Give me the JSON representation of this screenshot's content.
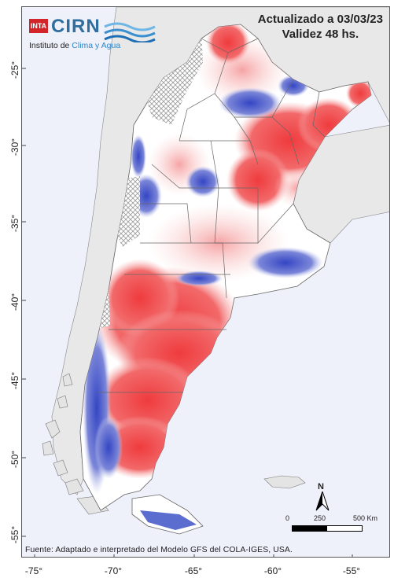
{
  "logo": {
    "inta_text": "INTA",
    "cirn_text": "CIRN",
    "institute_prefix": "Instituto de ",
    "institute_highlight": "Clima y Agua"
  },
  "header": {
    "updated": "Actualizado a 03/03/23",
    "validity": "Validez 48 hs."
  },
  "source_note": "Fuente: Adaptado e interpretado del Modelo GFS del COLA-IGES, USA.",
  "scale_bar": {
    "label_0": "0",
    "label_250": "250",
    "label_500": "500 Km"
  },
  "north_arrow": {
    "label": "N"
  },
  "axes": {
    "latitude_labels": [
      "-25°",
      "-30°",
      "-35°",
      "-40°",
      "-45°",
      "-50°",
      "-55°"
    ],
    "longitude_labels": [
      "-75°",
      "-70°",
      "-65°",
      "-60°",
      "-55°"
    ]
  },
  "colors": {
    "warm_anomaly": "#f0474a",
    "cool_anomaly": "#3f53c8",
    "neutral": "#ffffff",
    "land_outside": "#e8e8e8",
    "ocean": "#eef0fa"
  }
}
